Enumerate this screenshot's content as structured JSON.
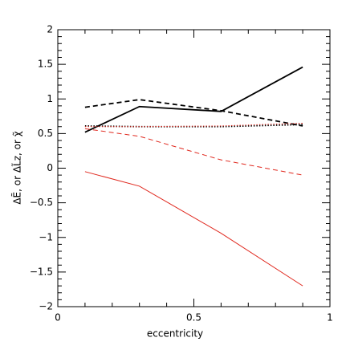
{
  "chart_data": {
    "type": "line",
    "xlabel": "eccentricity",
    "ylabel": "ΔẼ, or ΔL̃z, or χ̃",
    "x": [
      0.1,
      0.3,
      0.6,
      0.9
    ],
    "series": [
      {
        "color": "#000000",
        "dash": "solid",
        "values": [
          0.52,
          0.89,
          0.82,
          1.46
        ]
      },
      {
        "color": "#000000",
        "dash": "dashed",
        "values": [
          0.88,
          0.99,
          0.83,
          0.61
        ]
      },
      {
        "color": "#000000",
        "dash": "dotted",
        "values": [
          0.61,
          0.6,
          0.6,
          0.63
        ]
      },
      {
        "color": "#e0281e",
        "dash": "dotted",
        "values": [
          0.6,
          0.6,
          0.61,
          0.65
        ]
      },
      {
        "color": "#e0281e",
        "dash": "dashed",
        "values": [
          0.57,
          0.46,
          0.12,
          -0.1
        ]
      },
      {
        "color": "#e0281e",
        "dash": "solid",
        "values": [
          -0.05,
          -0.26,
          -0.94,
          -1.7
        ]
      }
    ],
    "xlim": [
      0,
      1
    ],
    "xticks": [
      0,
      0.5,
      1
    ],
    "xminorticks": [
      0.1,
      0.2,
      0.3,
      0.4,
      0.6,
      0.7,
      0.8,
      0.9
    ],
    "ylim": [
      -2,
      2
    ],
    "yticks": [
      {
        "value": -2,
        "label": "−2"
      },
      {
        "value": -1.5,
        "label": "−1.5"
      },
      {
        "value": -1,
        "label": "−1"
      },
      {
        "value": -0.5,
        "label": "−0.5"
      },
      0,
      0.5,
      1,
      1.5,
      2
    ],
    "yminorticks": [
      -1.9,
      -1.8,
      -1.7,
      -1.6,
      -1.4,
      -1.3,
      -1.2,
      -1.1,
      -0.9,
      -0.8,
      -0.7,
      -0.6,
      -0.4,
      -0.3,
      -0.2,
      -0.1,
      0.1,
      0.2,
      0.3,
      0.4,
      0.6,
      0.7,
      0.8,
      0.9,
      1.1,
      1.2,
      1.3,
      1.4,
      1.6,
      1.7,
      1.8,
      1.9
    ],
    "grid": false
  }
}
